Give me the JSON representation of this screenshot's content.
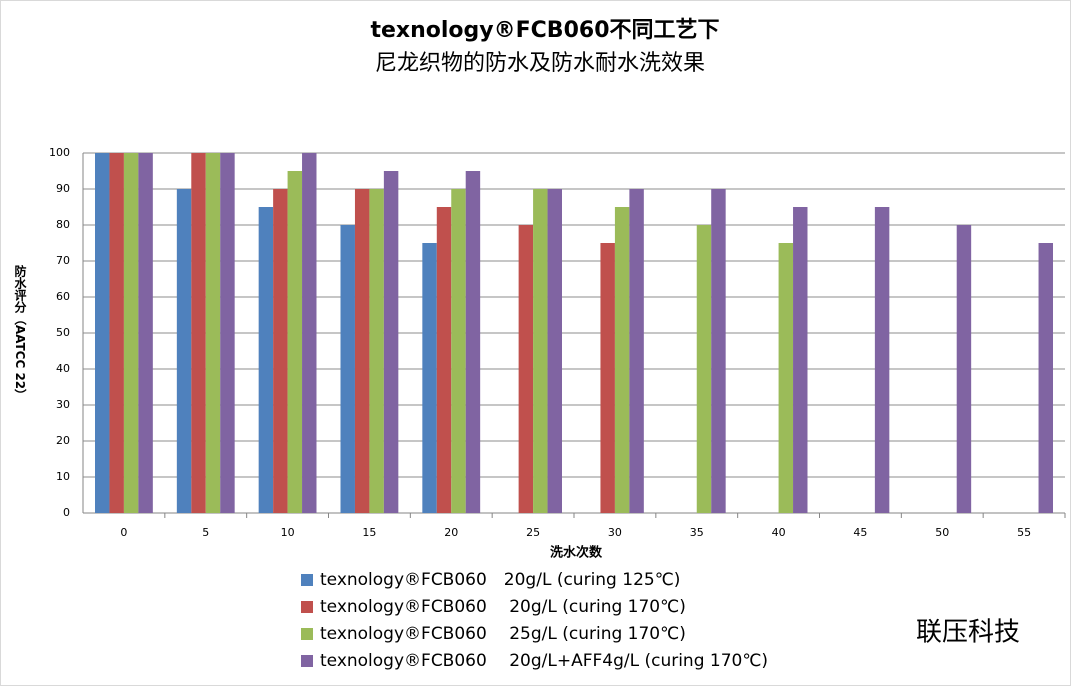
{
  "chart_data": {
    "type": "bar",
    "title": [
      "texnology®FCB060不同工艺下",
      "尼龙织物的防水及防水耐水洗效果"
    ],
    "ylabel": "防水评分（AATCC 22）",
    "xlabel": "洗水次数",
    "watermark": "联压科技",
    "categories": [
      "0",
      "5",
      "10",
      "15",
      "20",
      "25",
      "30",
      "35",
      "40",
      "45",
      "50",
      "55"
    ],
    "series": [
      {
        "name": "texnology®FCB060　20g/L (curing 125℃)",
        "color": "#4f81bd",
        "values": [
          100,
          90,
          85,
          80,
          75,
          null,
          null,
          null,
          null,
          null,
          null,
          null
        ]
      },
      {
        "name": "texnology®FCB060　 20g/L (curing 170℃)",
        "color": "#c0504d",
        "values": [
          100,
          100,
          90,
          90,
          85,
          80,
          75,
          null,
          null,
          null,
          null,
          null
        ]
      },
      {
        "name": "texnology®FCB060　 25g/L (curing 170℃)",
        "color": "#9bbb59",
        "values": [
          100,
          100,
          95,
          90,
          90,
          90,
          85,
          80,
          75,
          null,
          null,
          null
        ]
      },
      {
        "name": "texnology®FCB060　 20g/L+AFF4g/L  (curing 170℃)",
        "color": "#8064a2",
        "values": [
          100,
          100,
          100,
          95,
          95,
          90,
          90,
          90,
          85,
          85,
          80,
          75
        ]
      }
    ],
    "ylim": [
      0,
      100
    ],
    "yticks": [
      0,
      10,
      20,
      30,
      40,
      50,
      60,
      70,
      80,
      90,
      100
    ],
    "grid": true
  }
}
